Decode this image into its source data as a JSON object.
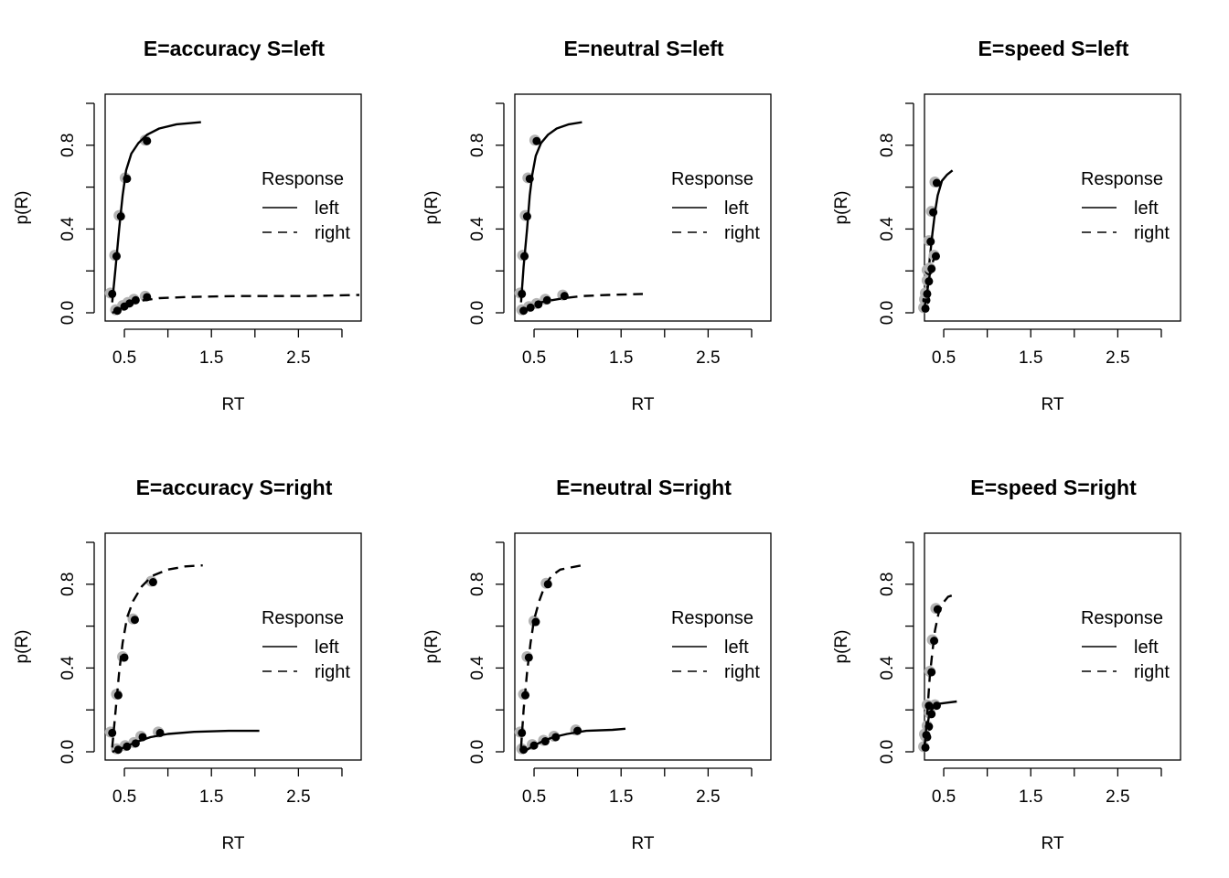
{
  "figure": {
    "axis_labels": {
      "x": "RT",
      "y": "p(R)"
    },
    "legend": {
      "title": "Response",
      "entries": [
        "left",
        "right"
      ],
      "placement": "right-center"
    },
    "colors": {
      "model": "#000000",
      "data": "#b3b3b3",
      "axis": "#000000"
    }
  },
  "chart_data": [
    {
      "type": "line",
      "title": "E=accuracy S=left",
      "xlabel": "RT",
      "ylabel": "p(R)",
      "xlim": [
        0.3,
        3.2
      ],
      "ylim": [
        0,
        1
      ],
      "x_ticks": [
        "0.5",
        "1.5",
        "2.5"
      ],
      "y_ticks": [
        "0.0",
        "0.4",
        "0.8"
      ],
      "legend_title": "Response",
      "series": [
        {
          "name": "left",
          "style": "solid",
          "x": [
            0.36,
            0.4,
            0.44,
            0.48,
            0.52,
            0.58,
            0.66,
            0.76,
            0.9,
            1.1,
            1.38
          ],
          "y": [
            0.05,
            0.22,
            0.4,
            0.56,
            0.68,
            0.76,
            0.81,
            0.85,
            0.88,
            0.9,
            0.91
          ],
          "quantiles_x": [
            0.36,
            0.41,
            0.46,
            0.53,
            0.76
          ],
          "quantiles_y": [
            0.09,
            0.27,
            0.46,
            0.64,
            0.82
          ]
        },
        {
          "name": "right",
          "style": "dashed",
          "x": [
            0.36,
            0.42,
            0.5,
            0.6,
            0.72,
            0.9,
            1.2,
            1.8,
            2.6,
            3.2
          ],
          "y": [
            0.0,
            0.01,
            0.03,
            0.05,
            0.06,
            0.07,
            0.075,
            0.08,
            0.08,
            0.085
          ],
          "quantiles_x": [
            0.42,
            0.5,
            0.56,
            0.63,
            0.76
          ],
          "quantiles_y": [
            0.01,
            0.03,
            0.045,
            0.06,
            0.075
          ]
        }
      ]
    },
    {
      "type": "line",
      "title": "E=neutral S=left",
      "xlabel": "RT",
      "ylabel": "p(R)",
      "xlim": [
        0.3,
        3.2
      ],
      "ylim": [
        0,
        1
      ],
      "x_ticks": [
        "0.5",
        "1.5",
        "2.5"
      ],
      "y_ticks": [
        "0.0",
        "0.4",
        "0.8"
      ],
      "legend_title": "Response",
      "series": [
        {
          "name": "left",
          "style": "solid",
          "x": [
            0.35,
            0.38,
            0.42,
            0.45,
            0.48,
            0.52,
            0.58,
            0.66,
            0.76,
            0.9,
            1.05
          ],
          "y": [
            0.05,
            0.22,
            0.4,
            0.56,
            0.66,
            0.75,
            0.81,
            0.85,
            0.88,
            0.9,
            0.91
          ],
          "quantiles_x": [
            0.36,
            0.39,
            0.42,
            0.45,
            0.53
          ],
          "quantiles_y": [
            0.09,
            0.27,
            0.46,
            0.64,
            0.82
          ]
        },
        {
          "name": "right",
          "style": "dashed",
          "x": [
            0.35,
            0.4,
            0.48,
            0.58,
            0.7,
            0.85,
            1.05,
            1.35,
            1.75
          ],
          "y": [
            0.0,
            0.01,
            0.03,
            0.05,
            0.06,
            0.07,
            0.08,
            0.085,
            0.09
          ],
          "quantiles_x": [
            0.38,
            0.46,
            0.55,
            0.65,
            0.85
          ],
          "quantiles_y": [
            0.01,
            0.025,
            0.04,
            0.06,
            0.08
          ]
        }
      ]
    },
    {
      "type": "line",
      "title": "E=speed S=left",
      "xlabel": "RT",
      "ylabel": "p(R)",
      "xlim": [
        0.3,
        3.2
      ],
      "ylim": [
        0,
        1
      ],
      "x_ticks": [
        "0.5",
        "1.5",
        "2.5"
      ],
      "y_ticks": [
        "0.0",
        "0.4",
        "0.8"
      ],
      "legend_title": "Response",
      "series": [
        {
          "name": "left",
          "style": "solid",
          "x": [
            0.28,
            0.3,
            0.32,
            0.34,
            0.37,
            0.4,
            0.43,
            0.48,
            0.54,
            0.6
          ],
          "y": [
            0.02,
            0.08,
            0.17,
            0.26,
            0.38,
            0.48,
            0.56,
            0.63,
            0.66,
            0.68
          ],
          "quantiles_x": [
            0.3,
            0.33,
            0.35,
            0.38,
            0.42
          ],
          "quantiles_y": [
            0.06,
            0.2,
            0.34,
            0.48,
            0.62
          ]
        },
        {
          "name": "right",
          "style": "dashed",
          "x": [
            0.27,
            0.29,
            0.31,
            0.33,
            0.35,
            0.38,
            0.42,
            0.46
          ],
          "y": [
            0.01,
            0.05,
            0.1,
            0.16,
            0.21,
            0.25,
            0.28,
            0.3
          ],
          "quantiles_x": [
            0.29,
            0.31,
            0.33,
            0.36,
            0.41
          ],
          "quantiles_y": [
            0.02,
            0.09,
            0.15,
            0.21,
            0.27
          ]
        }
      ]
    },
    {
      "type": "line",
      "title": "E=accuracy S=right",
      "xlabel": "RT",
      "ylabel": "p(R)",
      "xlim": [
        0.3,
        3.2
      ],
      "ylim": [
        0,
        1
      ],
      "x_ticks": [
        "0.5",
        "1.5",
        "2.5"
      ],
      "y_ticks": [
        "0.0",
        "0.4",
        "0.8"
      ],
      "legend_title": "Response",
      "series": [
        {
          "name": "left",
          "style": "solid",
          "x": [
            0.36,
            0.44,
            0.54,
            0.66,
            0.8,
            1.0,
            1.3,
            1.7,
            2.05
          ],
          "y": [
            0.0,
            0.01,
            0.03,
            0.05,
            0.07,
            0.085,
            0.095,
            0.1,
            0.1
          ],
          "quantiles_x": [
            0.43,
            0.53,
            0.63,
            0.71,
            0.91
          ],
          "quantiles_y": [
            0.01,
            0.025,
            0.04,
            0.07,
            0.09
          ]
        },
        {
          "name": "right",
          "style": "dashed",
          "x": [
            0.36,
            0.4,
            0.44,
            0.48,
            0.53,
            0.6,
            0.7,
            0.82,
            1.0,
            1.2,
            1.4
          ],
          "y": [
            0.02,
            0.2,
            0.38,
            0.52,
            0.64,
            0.72,
            0.79,
            0.84,
            0.87,
            0.885,
            0.89
          ],
          "quantiles_x": [
            0.36,
            0.43,
            0.5,
            0.62,
            0.83
          ],
          "quantiles_y": [
            0.09,
            0.27,
            0.45,
            0.63,
            0.81
          ]
        }
      ]
    },
    {
      "type": "line",
      "title": "E=neutral S=right",
      "xlabel": "RT",
      "ylabel": "p(R)",
      "xlim": [
        0.3,
        3.2
      ],
      "ylim": [
        0,
        1
      ],
      "x_ticks": [
        "0.5",
        "1.5",
        "2.5"
      ],
      "y_ticks": [
        "0.0",
        "0.4",
        "0.8"
      ],
      "legend_title": "Response",
      "series": [
        {
          "name": "left",
          "style": "solid",
          "x": [
            0.35,
            0.42,
            0.5,
            0.6,
            0.72,
            0.88,
            1.1,
            1.4,
            1.55
          ],
          "y": [
            0.0,
            0.01,
            0.03,
            0.05,
            0.07,
            0.085,
            0.1,
            0.105,
            0.11
          ],
          "quantiles_x": [
            0.38,
            0.5,
            0.63,
            0.75,
            1.0
          ],
          "quantiles_y": [
            0.01,
            0.03,
            0.05,
            0.07,
            0.1
          ]
        },
        {
          "name": "right",
          "style": "dashed",
          "x": [
            0.35,
            0.38,
            0.42,
            0.46,
            0.5,
            0.56,
            0.62,
            0.7,
            0.8,
            0.92,
            1.05
          ],
          "y": [
            0.02,
            0.2,
            0.38,
            0.52,
            0.63,
            0.72,
            0.79,
            0.84,
            0.87,
            0.88,
            0.89
          ],
          "quantiles_x": [
            0.36,
            0.4,
            0.44,
            0.52,
            0.66
          ],
          "quantiles_y": [
            0.09,
            0.27,
            0.45,
            0.62,
            0.8
          ]
        }
      ]
    },
    {
      "type": "line",
      "title": "E=speed S=right",
      "xlabel": "RT",
      "ylabel": "p(R)",
      "xlim": [
        0.3,
        3.2
      ],
      "ylim": [
        0,
        1
      ],
      "x_ticks": [
        "0.5",
        "1.5",
        "2.5"
      ],
      "y_ticks": [
        "0.0",
        "0.4",
        "0.8"
      ],
      "legend_title": "Response",
      "series": [
        {
          "name": "left",
          "style": "solid",
          "x": [
            0.27,
            0.29,
            0.31,
            0.33,
            0.36,
            0.4,
            0.46,
            0.55,
            0.65
          ],
          "y": [
            0.01,
            0.06,
            0.12,
            0.17,
            0.2,
            0.22,
            0.23,
            0.235,
            0.24
          ],
          "quantiles_x": [
            0.29,
            0.31,
            0.33,
            0.36,
            0.42
          ],
          "quantiles_y": [
            0.02,
            0.07,
            0.12,
            0.18,
            0.22
          ]
        },
        {
          "name": "right",
          "style": "dashed",
          "x": [
            0.28,
            0.3,
            0.32,
            0.34,
            0.37,
            0.4,
            0.44,
            0.49,
            0.55,
            0.62
          ],
          "y": [
            0.02,
            0.12,
            0.24,
            0.36,
            0.48,
            0.58,
            0.66,
            0.71,
            0.74,
            0.75
          ],
          "quantiles_x": [
            0.3,
            0.33,
            0.36,
            0.39,
            0.43
          ],
          "quantiles_y": [
            0.08,
            0.22,
            0.38,
            0.53,
            0.68
          ]
        }
      ]
    }
  ]
}
